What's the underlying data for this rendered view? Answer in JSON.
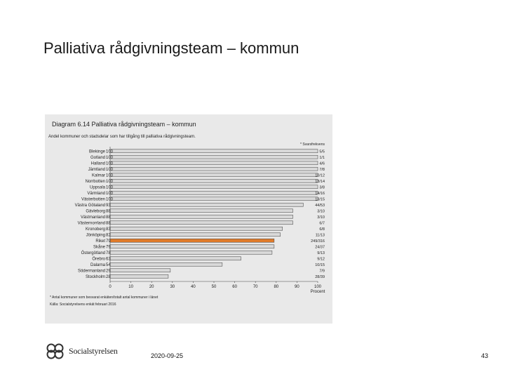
{
  "slide": {
    "title": "Palliativa rådgivningsteam – kommun",
    "date": "2020-09-25",
    "page_number": "43",
    "logo_text": "Socialstyrelsen"
  },
  "chart_data": {
    "type": "bar",
    "orientation": "horizontal",
    "title": "Diagram 6.14 Palliativa rådgivningsteam – kommun",
    "subtitle": "Andel kommuner och stadsdelar som har tillgång till palliativa rådgivningsteam.",
    "right_column_header": "* Svarsfrekvens",
    "xlabel": "Procent",
    "xlim": [
      0,
      100
    ],
    "xticks": [
      "0",
      "10",
      "20",
      "30",
      "40",
      "50",
      "60",
      "70",
      "80",
      "90",
      "100"
    ],
    "highlight_color": "#e07b2a",
    "bar_color": "#d9d9d9",
    "categories": [
      "Blekinge",
      "Gotland",
      "Halland",
      "Jämtland",
      "Kalmar",
      "Norrbotten",
      "Uppsala",
      "Värmland",
      "Västerbotten",
      "Västra Götaland",
      "Gävleborg",
      "Västmanland",
      "Västernorrland",
      "Kronoberg",
      "Jönköping",
      "Riket",
      "Skåne",
      "Östergötland",
      "Örebro",
      "Dalarna",
      "Södermanland",
      "Stockholm"
    ],
    "value_labels": [
      "100",
      "100",
      "100",
      "100",
      "100",
      "100",
      "100",
      "100",
      "100",
      "93",
      "88",
      "88",
      "88",
      "83",
      "82",
      "79",
      "79",
      "78",
      "63",
      "54",
      "29",
      "28"
    ],
    "values": [
      100,
      100,
      100,
      100,
      100,
      100,
      100,
      100,
      100,
      93,
      88,
      88,
      88,
      83,
      82,
      79,
      79,
      78,
      63,
      54,
      29,
      28
    ],
    "response_rates": [
      "5/5",
      "1/1",
      "4/6",
      "7/8",
      "10/12",
      "13/14",
      "3/8",
      "14/16",
      "13/15",
      "44/53",
      "3/10",
      "3/10",
      "6/7",
      "6/8",
      "11/13",
      "249/316",
      "24/37",
      "9/13",
      "9/12",
      "10/15",
      "7/9",
      "28/39"
    ],
    "highlight_category": "Riket"
  },
  "footnotes": {
    "line1": "* Antal kommuner som besvarat enkäten/totalt antal kommuner i länet",
    "line2": "Källa: Socialstyrelsens enkät februari 2016"
  }
}
